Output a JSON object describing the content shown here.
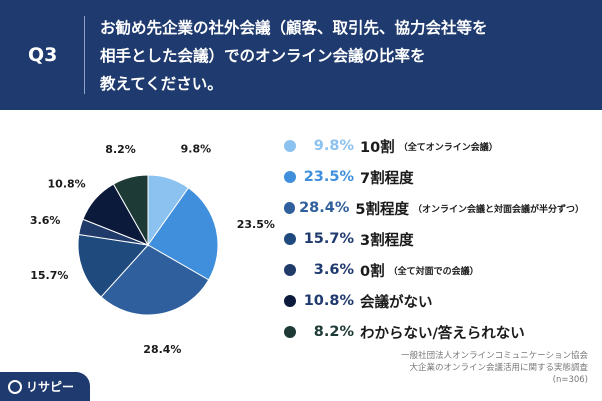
{
  "header": {
    "question_label": "Q3",
    "question_lines": [
      "お勧め先企業の社外会議（顧客、取引先、協力会社等を",
      "相手とした会議）でのオンライン会議の比率を",
      "教えてください。"
    ]
  },
  "colors": {
    "header_bg": "#1f3a6e",
    "slices": [
      "#8cc2f0",
      "#3f8fdc",
      "#2f5f9c",
      "#1f4a7e",
      "#203a6a",
      "#0b1a3a",
      "#1d3a36"
    ]
  },
  "chart_data": {
    "type": "pie",
    "title": "",
    "start_angle_deg": 0,
    "direction": "clockwise",
    "slices": [
      {
        "value": 9.8,
        "pct_label": "9.8%",
        "outer_label": "9.8%",
        "legend_label": "10割",
        "legend_sub": "（全てオンライン会議）"
      },
      {
        "value": 23.5,
        "pct_label": "23.5%",
        "outer_label": "23.5%",
        "legend_label": "7割程度",
        "legend_sub": ""
      },
      {
        "value": 28.4,
        "pct_label": "28.4%",
        "outer_label": "28.4%",
        "legend_label": "5割程度",
        "legend_sub": "（オンライン会議と対面会議が半分ずつ）"
      },
      {
        "value": 15.7,
        "pct_label": "15.7%",
        "outer_label": "15.7%",
        "legend_label": "3割程度",
        "legend_sub": ""
      },
      {
        "value": 3.6,
        "pct_label": "3.6%",
        "outer_label": "3.6%",
        "legend_label": "0割",
        "legend_sub": "（全て対面での会議）"
      },
      {
        "value": 10.8,
        "pct_label": "10.8%",
        "outer_label": "10.8%",
        "legend_label": "会議がない",
        "legend_sub": ""
      },
      {
        "value": 8.2,
        "pct_label": "8.2%",
        "outer_label": "8.2%",
        "legend_label": "わからない/答えられない",
        "legend_sub": ""
      }
    ]
  },
  "footer": {
    "source_lines": [
      "一般社団法人オンラインコミュニケーション協会",
      "大企業のオンライン会議活用に関する実態調査",
      "(n=306)"
    ],
    "logo_text": "リサピー"
  }
}
